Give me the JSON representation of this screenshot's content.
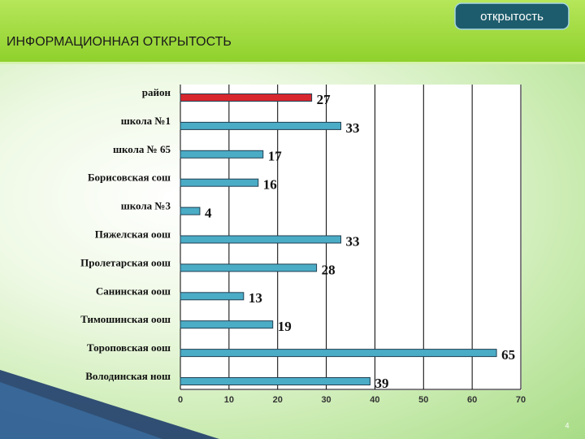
{
  "header": {
    "tab": "открытость",
    "title": "ИНФОРМАЦИОННАЯ ОТКРЫТОСТЬ"
  },
  "page_number": 4,
  "chart_data": {
    "type": "hbar",
    "categories": [
      "район",
      "школа №1",
      "школа № 65",
      "Борисовская сош",
      "школа №3",
      "Пяжелская оош",
      "Пролетарская оош",
      "Санинская оош",
      "Тимошинская оош",
      "Тороповская оош",
      "Володинская нош"
    ],
    "values": [
      27,
      33,
      17,
      16,
      4,
      33,
      28,
      13,
      19,
      65,
      39
    ],
    "colors": [
      "#d8262e",
      "#4bacc6",
      "#4bacc6",
      "#4bacc6",
      "#4bacc6",
      "#4bacc6",
      "#4bacc6",
      "#4bacc6",
      "#4bacc6",
      "#4bacc6",
      "#4bacc6"
    ],
    "xlim": [
      0,
      70
    ],
    "xticks": [
      0,
      10,
      20,
      30,
      40,
      50,
      60,
      70
    ],
    "grid": true
  }
}
